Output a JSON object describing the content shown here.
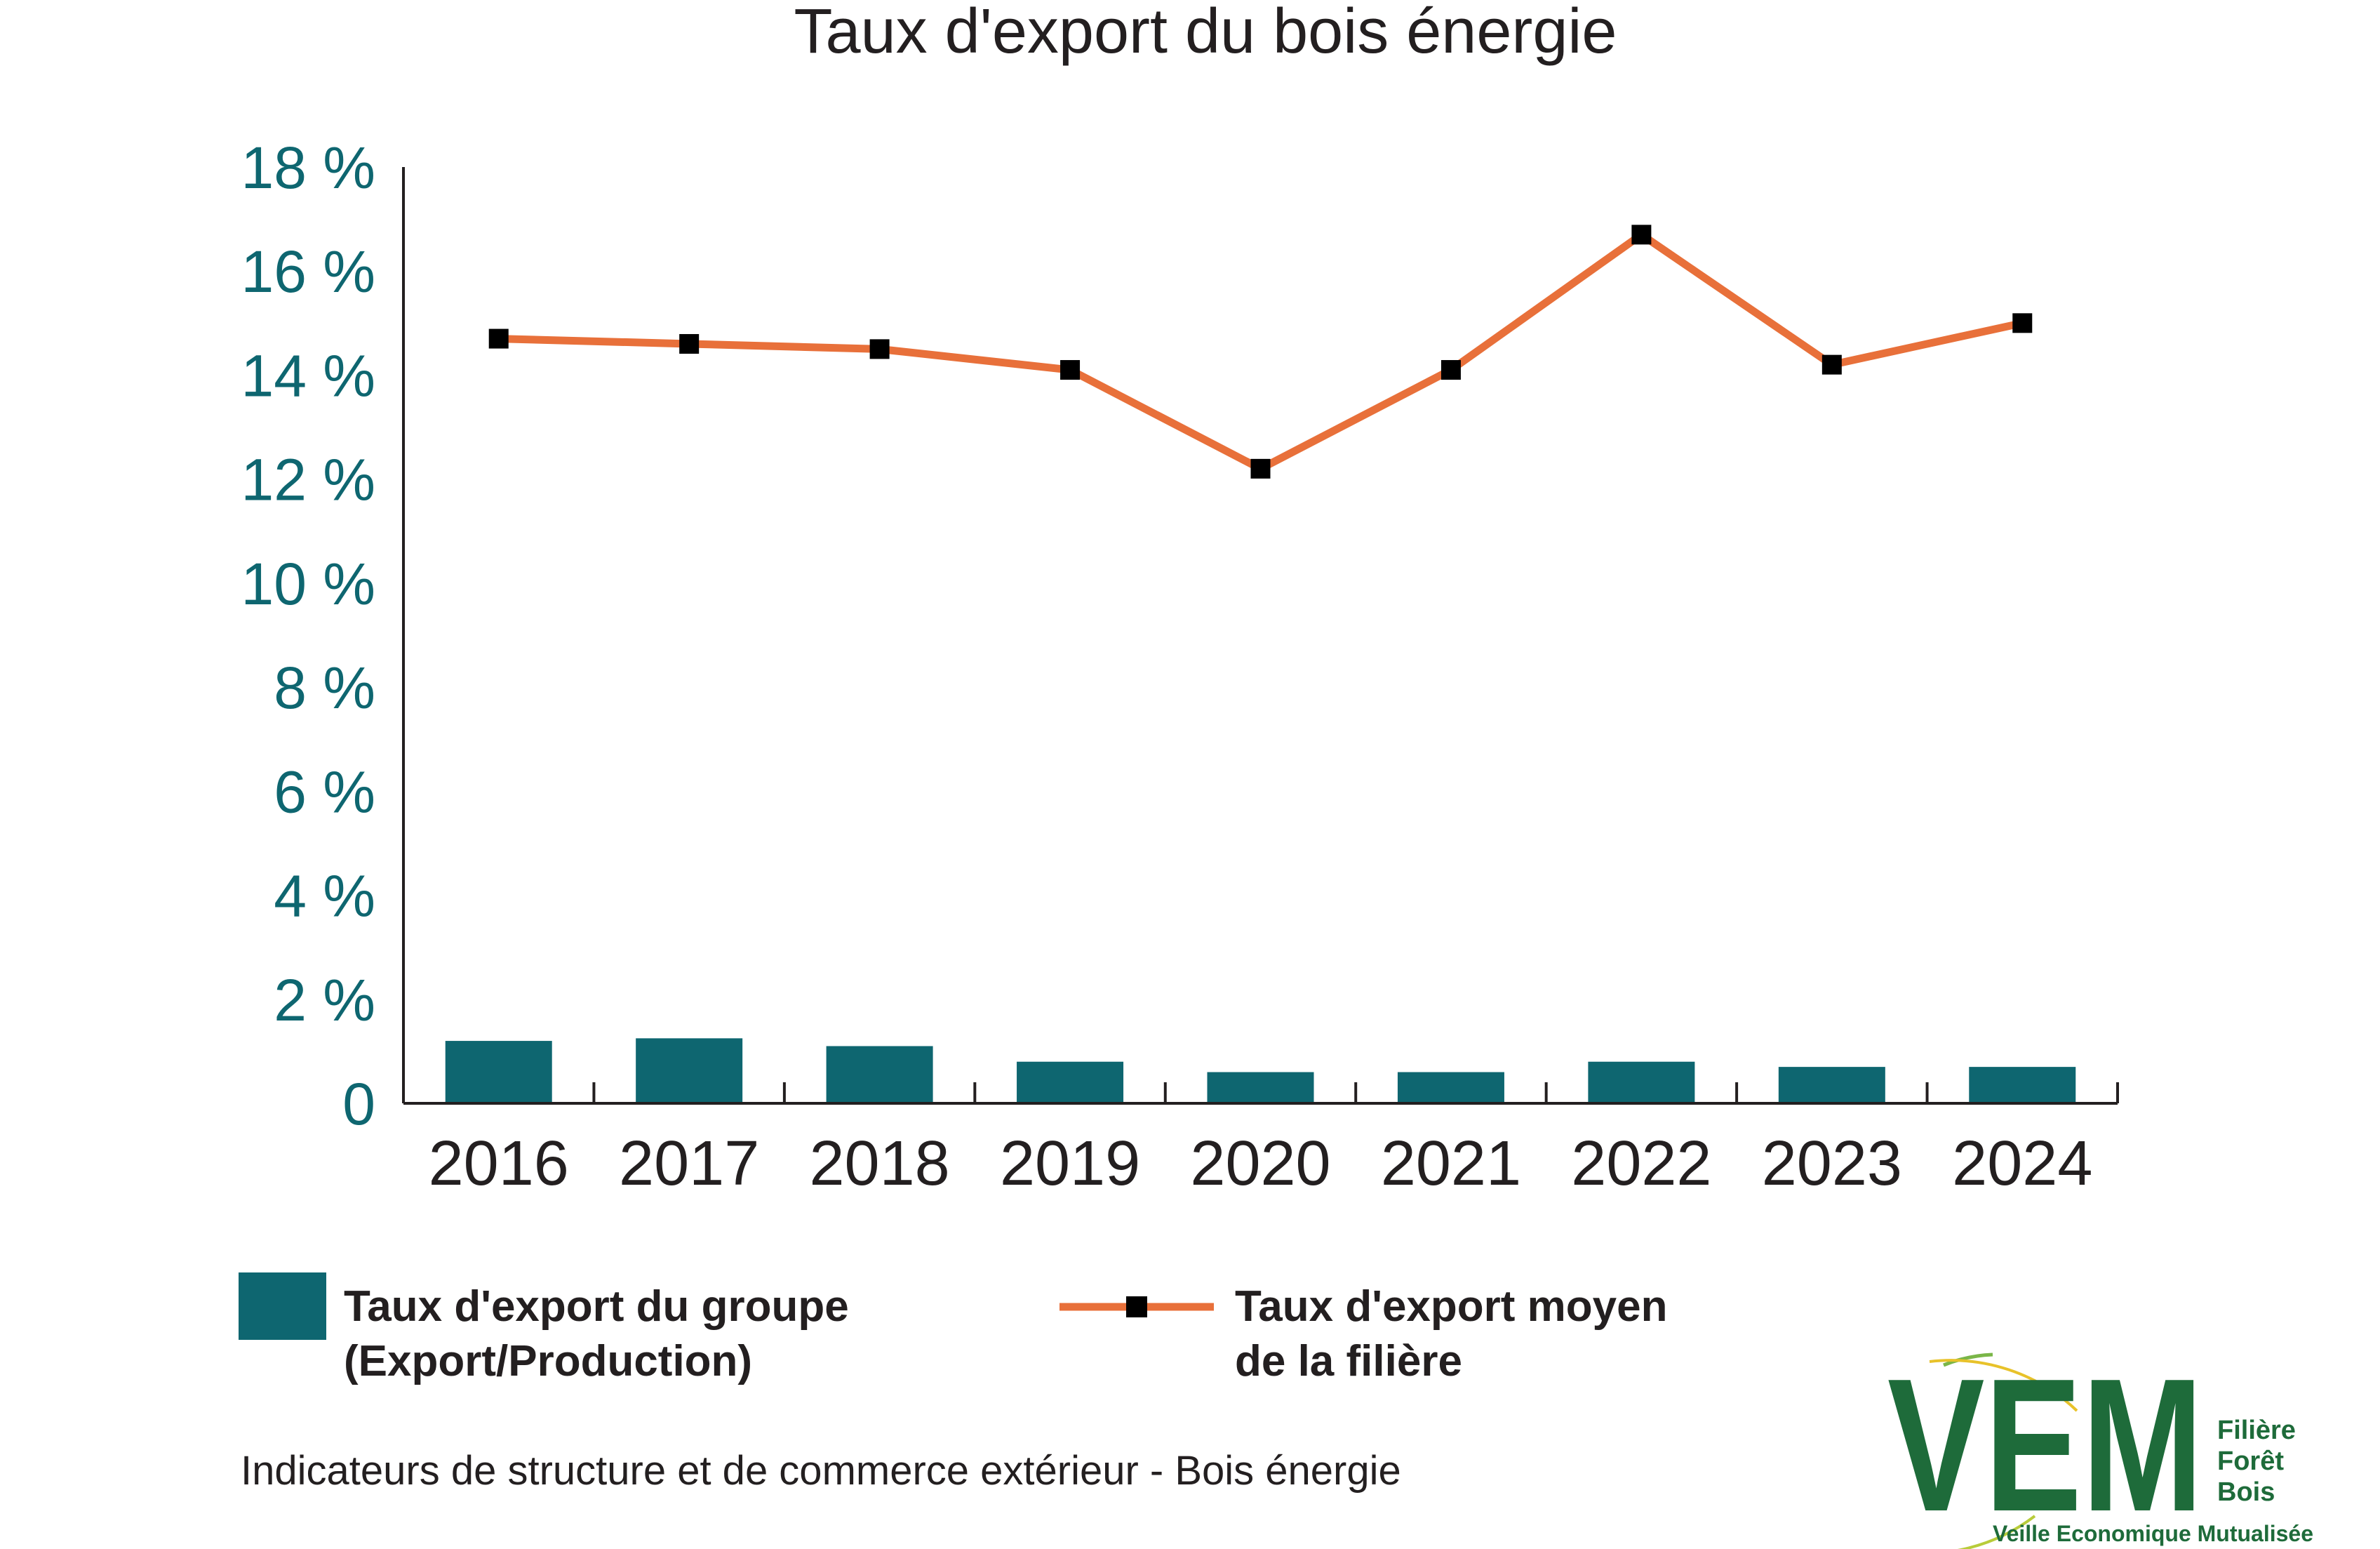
{
  "chart_data": {
    "type": "bar",
    "title": "Taux d'export du bois énergie",
    "categories": [
      "2016",
      "2017",
      "2018",
      "2019",
      "2020",
      "2021",
      "2022",
      "2023",
      "2024"
    ],
    "ylim": [
      0,
      18
    ],
    "y_ticks": [
      "0",
      "2 %",
      "4 %",
      "6 %",
      "8 %",
      "10 %",
      "12 %",
      "14 %",
      "16 %",
      "18 %"
    ],
    "y_tick_values": [
      0,
      2,
      4,
      6,
      8,
      10,
      12,
      14,
      16,
      18
    ],
    "series": [
      {
        "name_line1": "Taux d'export du groupe",
        "name_line2": "(Export/Production)",
        "type": "bar",
        "color": "#0e6670",
        "values": [
          1.2,
          1.25,
          1.1,
          0.8,
          0.6,
          0.6,
          0.8,
          0.7,
          0.7
        ]
      },
      {
        "name_line1": "Taux d'export moyen",
        "name_line2": "de la filière",
        "type": "line",
        "color": "#e8703a",
        "marker_color": "#000000",
        "values": [
          14.7,
          14.6,
          14.5,
          14.1,
          12.2,
          14.1,
          16.7,
          14.2,
          15.0
        ]
      }
    ],
    "legend_position": "bottom",
    "grid": false
  },
  "caption": "Indicateurs de structure et de commerce extérieur - Bois énergie",
  "logo": {
    "letters": "VEM",
    "line1": "Filière",
    "line2": "Forêt",
    "line3": "Bois",
    "tagline": "Veille Economique Mutualisée",
    "green": "#1e6b3a",
    "yellow": "#e8c22a"
  }
}
